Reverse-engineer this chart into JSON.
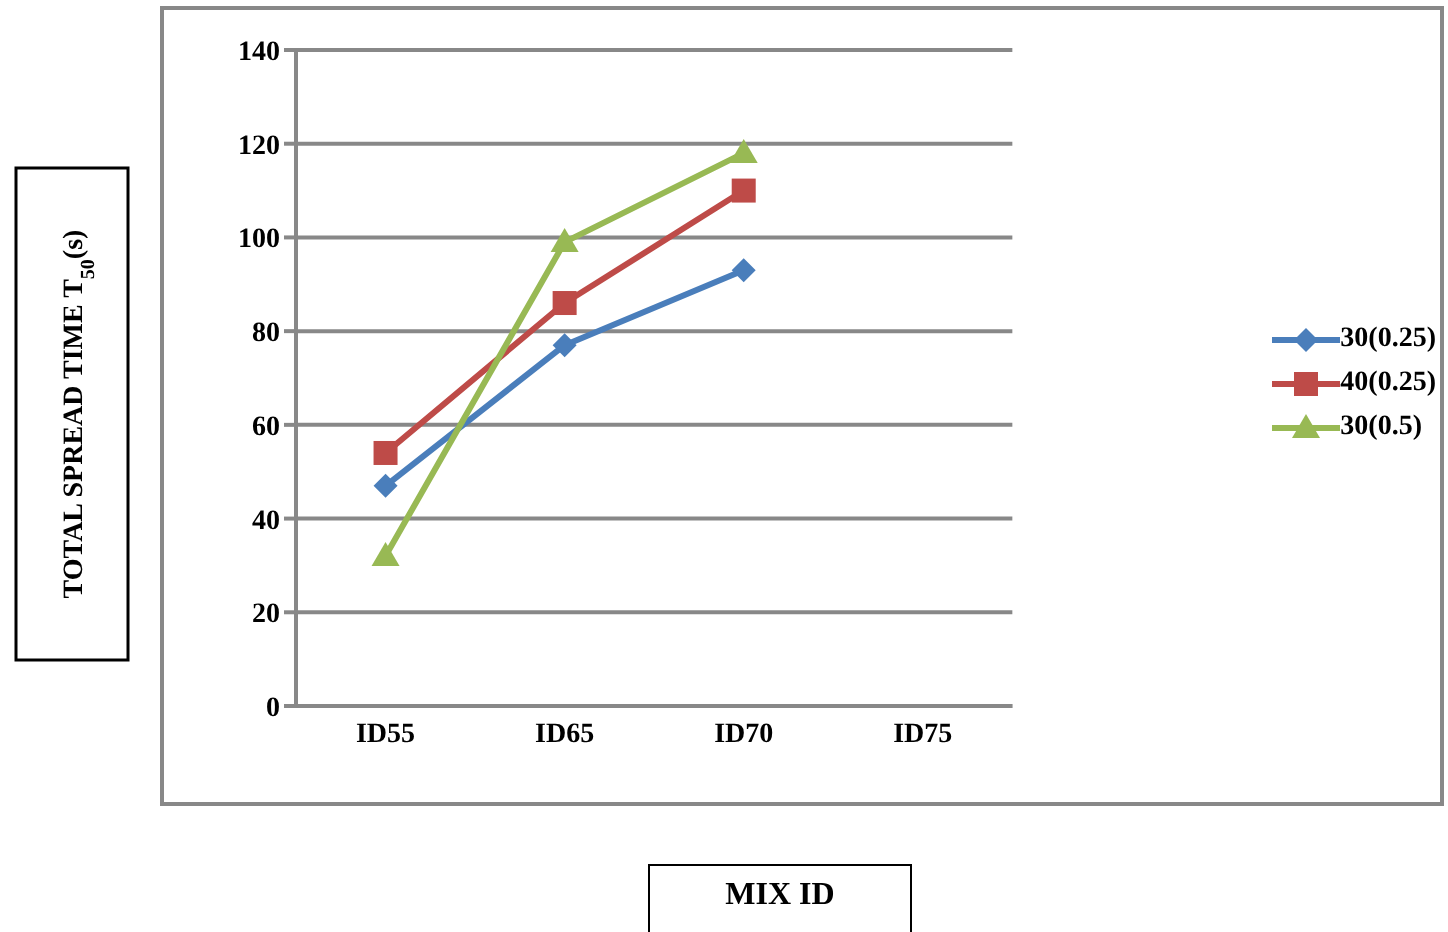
{
  "chart_data": {
    "type": "line",
    "xlabel": "MIX ID",
    "ylabel": "TOTAL SPREAD TIME T$_{50}$(s)",
    "categories": [
      "ID55",
      "ID65",
      "ID70",
      "ID75"
    ],
    "series": [
      {
        "name": "30(0.25)",
        "color": "#4a7ebb",
        "marker": "diamond",
        "values": [
          47,
          77,
          93,
          null
        ]
      },
      {
        "name": "40(0.25)",
        "color": "#be4b48",
        "marker": "square",
        "values": [
          54,
          86,
          110,
          null
        ]
      },
      {
        "name": "30(0.5)",
        "color": "#98b954",
        "marker": "triangle",
        "values": [
          32,
          99,
          118,
          null
        ]
      }
    ],
    "ylim": [
      0,
      140
    ],
    "yticks": [
      0,
      20,
      40,
      60,
      80,
      100,
      120,
      140
    ],
    "grid": "y",
    "legend": "right",
    "line_style": "solid"
  }
}
